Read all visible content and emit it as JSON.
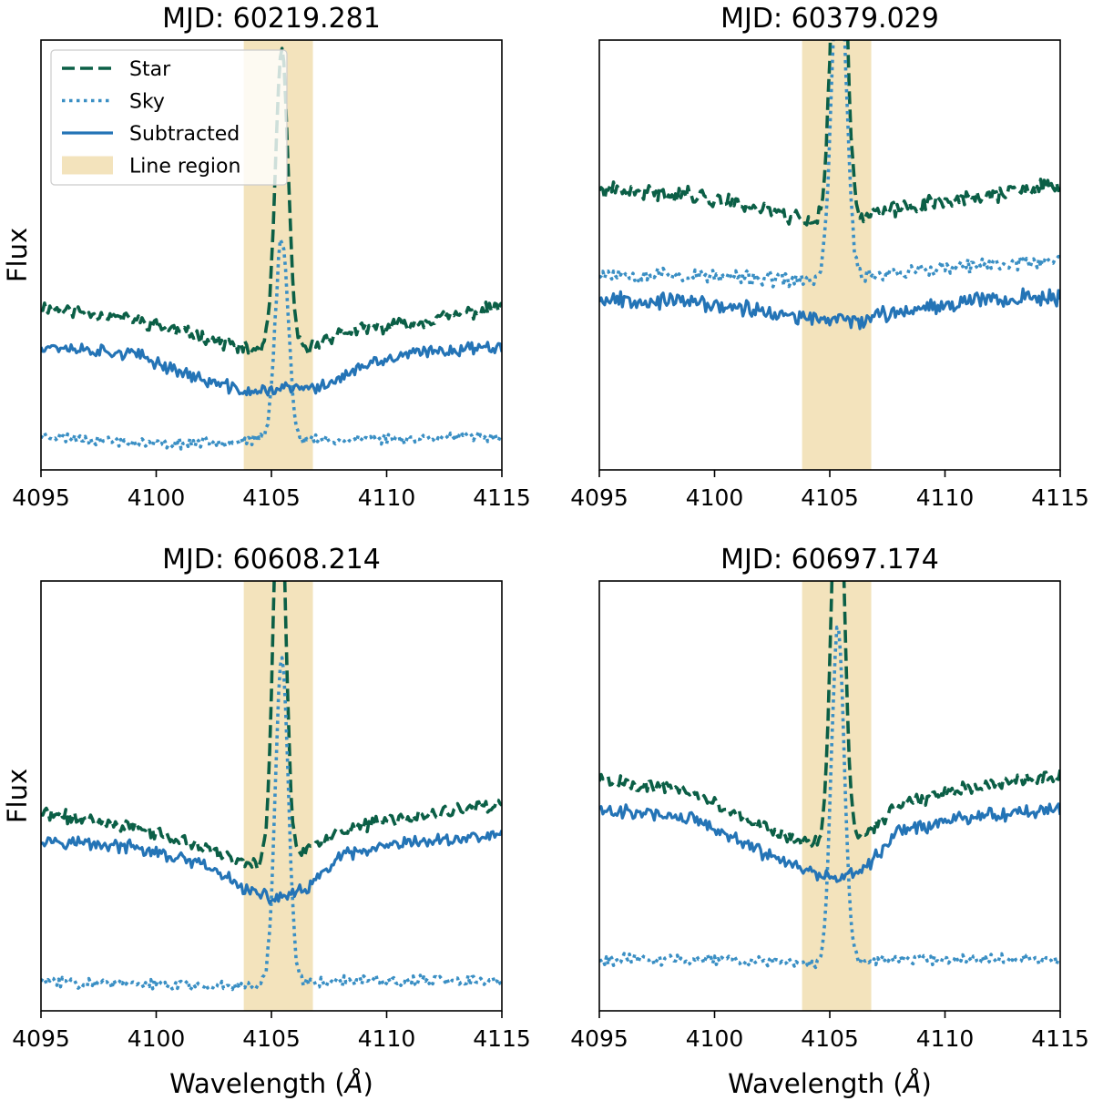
{
  "figure": {
    "legend": {
      "placement": "upper-left",
      "panel": 0,
      "entries": [
        {
          "label": "Star",
          "style": "dashed",
          "color": "#0b5f46"
        },
        {
          "label": "Sky",
          "style": "dotted",
          "color": "#3a8fc4"
        },
        {
          "label": "Subtracted",
          "style": "solid",
          "color": "#2474b6"
        },
        {
          "label": "Line region",
          "style": "patch",
          "color": "#f3e3bc"
        }
      ]
    }
  },
  "colors": {
    "star": "#0b5f46",
    "sky": "#3a8fc4",
    "subtracted": "#2474b6",
    "line_region": "#f3e3bc"
  },
  "chart_data": [
    {
      "type": "line",
      "title": "MJD: 60219.281",
      "xlabel": "",
      "ylabel": "Flux",
      "xlim": [
        4095,
        4115
      ],
      "ylim": [
        0,
        1
      ],
      "xticks": [
        "4095",
        "4100",
        "4105",
        "4110",
        "4115"
      ],
      "line_region": [
        4103.8,
        4106.8
      ],
      "y_ticks_shown": false,
      "series": [
        {
          "name": "Star",
          "key": "star",
          "base": [
            [
              4095,
              0.38
            ],
            [
              4099,
              0.35
            ],
            [
              4102,
              0.31
            ],
            [
              4104,
              0.28
            ],
            [
              4106.5,
              0.28
            ],
            [
              4108,
              0.32
            ],
            [
              4111,
              0.34
            ],
            [
              4115,
              0.38
            ]
          ],
          "peak": 0.69,
          "peak_center": 4105.45,
          "peak_sigma": 0.28,
          "noise": 0.012,
          "seed": 11
        },
        {
          "name": "Sky",
          "key": "sky",
          "base": [
            [
              4095,
              0.08
            ],
            [
              4100,
              0.06
            ],
            [
              4104,
              0.07
            ],
            [
              4108,
              0.07
            ],
            [
              4115,
              0.08
            ]
          ],
          "peak": 0.47,
          "peak_center": 4105.45,
          "peak_sigma": 0.28,
          "noise": 0.01,
          "seed": 23
        },
        {
          "name": "Subtracted",
          "key": "subtracted",
          "base": [
            [
              4095,
              0.29
            ],
            [
              4099,
              0.27
            ],
            [
              4102,
              0.21
            ],
            [
              4104,
              0.18
            ],
            [
              4105.5,
              0.19
            ],
            [
              4107,
              0.19
            ],
            [
              4109,
              0.24
            ],
            [
              4111,
              0.27
            ],
            [
              4115,
              0.29
            ]
          ],
          "peak": 0,
          "peak_center": 4105.45,
          "peak_sigma": 0.3,
          "noise": 0.012,
          "seed": 37
        }
      ]
    },
    {
      "type": "line",
      "title": "MJD: 60379.029",
      "xlabel": "",
      "ylabel": "",
      "xlim": [
        4095,
        4115
      ],
      "ylim": [
        0,
        1
      ],
      "xticks": [
        "4095",
        "4100",
        "4105",
        "4110",
        "4115"
      ],
      "line_region": [
        4103.8,
        4106.8
      ],
      "y_ticks_shown": false,
      "series": [
        {
          "name": "Star",
          "key": "star",
          "base": [
            [
              4095,
              0.65
            ],
            [
              4099,
              0.64
            ],
            [
              4102,
              0.61
            ],
            [
              4104,
              0.58
            ],
            [
              4106.5,
              0.59
            ],
            [
              4109,
              0.62
            ],
            [
              4112,
              0.64
            ],
            [
              4115,
              0.66
            ]
          ],
          "peak": 0.92,
          "peak_center": 4105.4,
          "peak_sigma": 0.3,
          "noise": 0.015,
          "seed": 41
        },
        {
          "name": "Sky",
          "key": "sky",
          "base": [
            [
              4095,
              0.46
            ],
            [
              4100,
              0.45
            ],
            [
              4104,
              0.44
            ],
            [
              4108,
              0.46
            ],
            [
              4115,
              0.49
            ]
          ],
          "peak": 0.8,
          "peak_center": 4105.4,
          "peak_sigma": 0.3,
          "noise": 0.014,
          "seed": 53
        },
        {
          "name": "Subtracted",
          "key": "subtracted",
          "base": [
            [
              4095,
              0.4
            ],
            [
              4099,
              0.39
            ],
            [
              4102,
              0.37
            ],
            [
              4104,
              0.35
            ],
            [
              4106.5,
              0.35
            ],
            [
              4109,
              0.38
            ],
            [
              4112,
              0.4
            ],
            [
              4115,
              0.4
            ]
          ],
          "peak": 0,
          "peak_center": 4105.4,
          "peak_sigma": 0.3,
          "noise": 0.015,
          "seed": 67
        }
      ]
    },
    {
      "type": "line",
      "title": "MJD: 60608.214",
      "xlabel": "Wavelength (Å)",
      "ylabel": "Flux",
      "xlim": [
        4095,
        4115
      ],
      "ylim": [
        0,
        1
      ],
      "xticks": [
        "4095",
        "4100",
        "4105",
        "4110",
        "4115"
      ],
      "line_region": [
        4103.8,
        4106.8
      ],
      "y_ticks_shown": false,
      "series": [
        {
          "name": "Star",
          "key": "star",
          "base": [
            [
              4095,
              0.46
            ],
            [
              4099,
              0.43
            ],
            [
              4102,
              0.38
            ],
            [
              4104,
              0.34
            ],
            [
              4106.5,
              0.37
            ],
            [
              4108,
              0.42
            ],
            [
              4111,
              0.45
            ],
            [
              4115,
              0.48
            ]
          ],
          "peak": 0.96,
          "peak_center": 4105.35,
          "peak_sigma": 0.26,
          "noise": 0.012,
          "seed": 71
        },
        {
          "name": "Sky",
          "key": "sky",
          "base": [
            [
              4095,
              0.07
            ],
            [
              4100,
              0.06
            ],
            [
              4104,
              0.06
            ],
            [
              4108,
              0.07
            ],
            [
              4115,
              0.07
            ]
          ],
          "peak": 0.76,
          "peak_center": 4105.45,
          "peak_sigma": 0.28,
          "noise": 0.01,
          "seed": 83
        },
        {
          "name": "Subtracted",
          "key": "subtracted",
          "base": [
            [
              4095,
              0.4
            ],
            [
              4099,
              0.38
            ],
            [
              4102,
              0.34
            ],
            [
              4104,
              0.28
            ],
            [
              4105,
              0.26
            ],
            [
              4106.5,
              0.28
            ],
            [
              4108,
              0.36
            ],
            [
              4111,
              0.39
            ],
            [
              4115,
              0.41
            ]
          ],
          "peak": 0,
          "peak_center": 4105.4,
          "peak_sigma": 0.3,
          "noise": 0.012,
          "seed": 97
        }
      ]
    },
    {
      "type": "line",
      "title": "MJD: 60697.174",
      "xlabel": "Wavelength (Å)",
      "ylabel": "",
      "xlim": [
        4095,
        4115
      ],
      "ylim": [
        0,
        1
      ],
      "xticks": [
        "4095",
        "4100",
        "4105",
        "4110",
        "4115"
      ],
      "line_region": [
        4103.8,
        4106.8
      ],
      "y_ticks_shown": false,
      "series": [
        {
          "name": "Star",
          "key": "star",
          "base": [
            [
              4095,
              0.54
            ],
            [
              4099,
              0.51
            ],
            [
              4102,
              0.43
            ],
            [
              4104,
              0.39
            ],
            [
              4106.5,
              0.41
            ],
            [
              4108,
              0.48
            ],
            [
              4111,
              0.52
            ],
            [
              4115,
              0.55
            ]
          ],
          "peak": 0.96,
          "peak_center": 4105.35,
          "peak_sigma": 0.27,
          "noise": 0.012,
          "seed": 101
        },
        {
          "name": "Sky",
          "key": "sky",
          "base": [
            [
              4095,
              0.12
            ],
            [
              4100,
              0.12
            ],
            [
              4104,
              0.11
            ],
            [
              4108,
              0.12
            ],
            [
              4115,
              0.12
            ]
          ],
          "peak": 0.78,
          "peak_center": 4105.35,
          "peak_sigma": 0.28,
          "noise": 0.01,
          "seed": 113
        },
        {
          "name": "Subtracted",
          "key": "subtracted",
          "base": [
            [
              4095,
              0.47
            ],
            [
              4099,
              0.45
            ],
            [
              4102,
              0.37
            ],
            [
              4104,
              0.33
            ],
            [
              4105.2,
              0.3
            ],
            [
              4106.5,
              0.33
            ],
            [
              4108,
              0.42
            ],
            [
              4111,
              0.45
            ],
            [
              4115,
              0.47
            ]
          ],
          "peak": 0,
          "peak_center": 4105.3,
          "peak_sigma": 0.3,
          "noise": 0.013,
          "seed": 127
        }
      ]
    }
  ]
}
